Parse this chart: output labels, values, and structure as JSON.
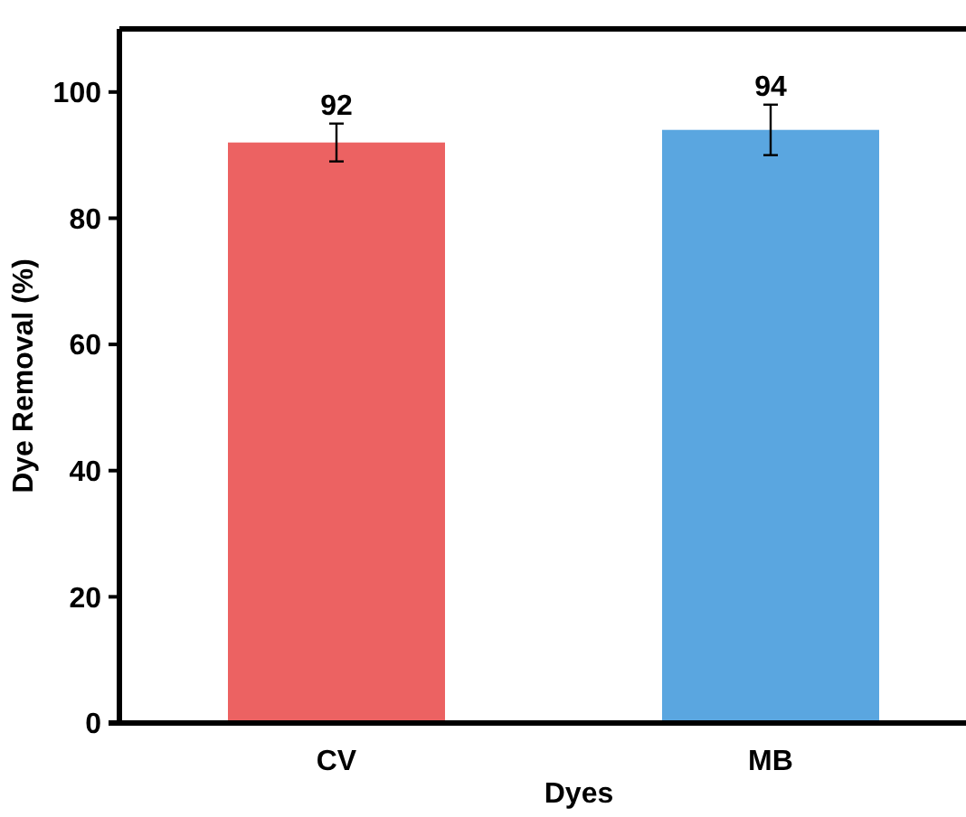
{
  "chart_data": {
    "type": "bar",
    "xlabel": "Dyes",
    "ylabel": "Dye Removal (%)",
    "categories": [
      "CV",
      "MB"
    ],
    "values": [
      92,
      94
    ],
    "colors": [
      "#ec6262",
      "#5aa6e0"
    ],
    "errors": [
      3,
      4
    ],
    "data_labels": true,
    "ylim": [
      0,
      110
    ],
    "yticks": [
      0,
      20,
      40,
      60,
      80,
      100
    ]
  }
}
